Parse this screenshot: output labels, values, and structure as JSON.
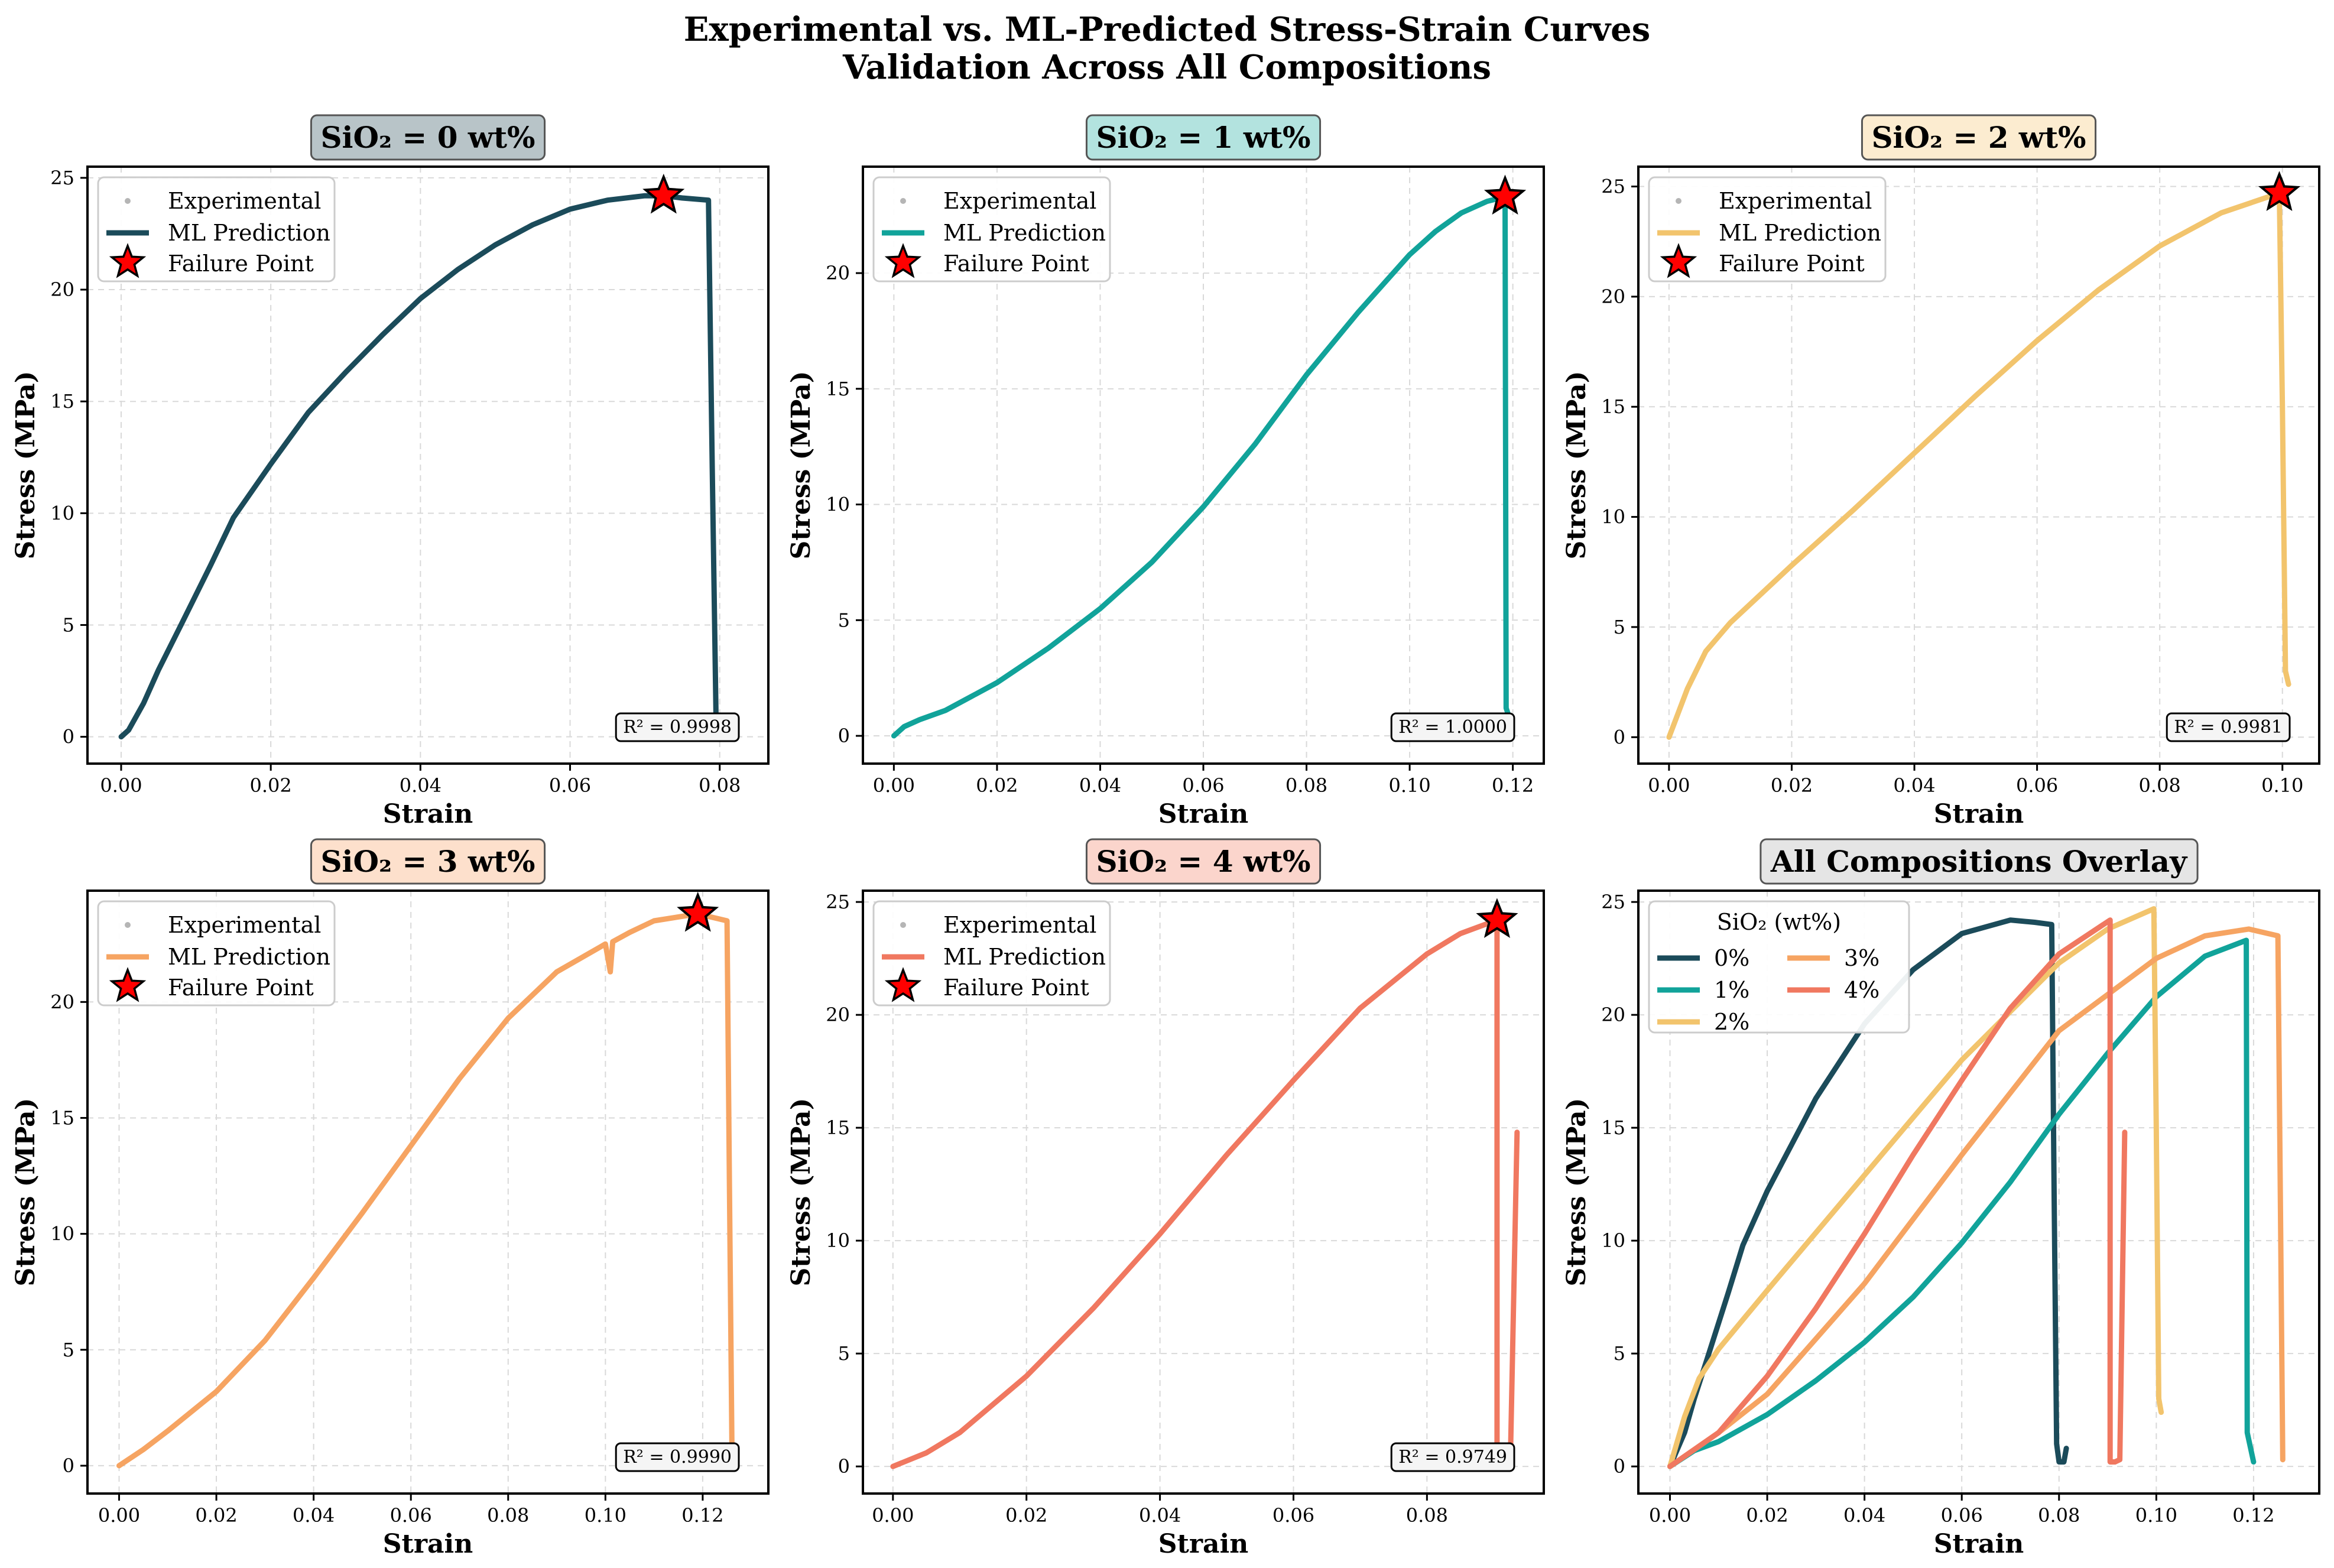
{
  "figure": {
    "title_line1": "Experimental vs. ML-Predicted Stress-Strain Curves",
    "title_line2": "Validation Across All Compositions"
  },
  "legend_labels": {
    "experimental": "Experimental",
    "ml": "ML Prediction",
    "failure": "Failure Point",
    "overlay_title": "SiO₂ (wt%)"
  },
  "colors": {
    "c0": "#1b4b5a",
    "c1": "#11a39a",
    "c2": "#f2c46d",
    "c3": "#f6a462",
    "c4": "#f07860",
    "star": "#ff0000"
  },
  "chart_data": [
    {
      "type": "line",
      "title": "SiO₂ = 0 wt%",
      "xlabel": "Strain",
      "ylabel": "Stress (MPa)",
      "xlim": [
        -0.0045,
        0.0865
      ],
      "ylim": [
        -1.2,
        25.5
      ],
      "xticks": [
        0,
        0.02,
        0.04,
        0.06,
        0.08
      ],
      "xtick_labels": [
        "0.00",
        "0.02",
        "0.04",
        "0.06",
        "0.08"
      ],
      "yticks": [
        0,
        5,
        10,
        15,
        20,
        25
      ],
      "ytick_labels": [
        "0",
        "5",
        "10",
        "15",
        "20",
        "25"
      ],
      "series": [
        {
          "name": "ML Prediction",
          "color_key": "c0",
          "x": [
            0,
            0.001,
            0.003,
            0.005,
            0.008,
            0.012,
            0.015,
            0.02,
            0.025,
            0.03,
            0.035,
            0.04,
            0.045,
            0.05,
            0.055,
            0.06,
            0.065,
            0.07,
            0.0725,
            0.075,
            0.0785,
            0.079,
            0.0795,
            0.08
          ],
          "y": [
            0,
            0.3,
            1.5,
            3.0,
            5.0,
            7.7,
            9.8,
            12.2,
            14.5,
            16.3,
            18.0,
            19.6,
            20.9,
            22.0,
            22.9,
            23.6,
            24.0,
            24.2,
            24.2,
            24.1,
            24.0,
            12.0,
            1.0,
            0.2
          ]
        }
      ],
      "failure_point": {
        "x": 0.0725,
        "y": 24.2
      },
      "r2_label": "R² = 0.9998"
    },
    {
      "type": "line",
      "title": "SiO₂ = 1 wt%",
      "xlabel": "Strain",
      "ylabel": "Stress (MPa)",
      "xlim": [
        -0.006,
        0.126
      ],
      "ylim": [
        -1.2,
        24.6
      ],
      "xticks": [
        0,
        0.02,
        0.04,
        0.06,
        0.08,
        0.1,
        0.12
      ],
      "xtick_labels": [
        "0.00",
        "0.02",
        "0.04",
        "0.06",
        "0.08",
        "0.10",
        "0.12"
      ],
      "yticks": [
        0,
        5,
        10,
        15,
        20
      ],
      "ytick_labels": [
        "0",
        "5",
        "10",
        "15",
        "20"
      ],
      "series": [
        {
          "name": "ML Prediction",
          "color_key": "c1",
          "x": [
            0,
            0.002,
            0.005,
            0.01,
            0.015,
            0.02,
            0.03,
            0.04,
            0.05,
            0.06,
            0.07,
            0.08,
            0.09,
            0.1,
            0.105,
            0.11,
            0.115,
            0.1185,
            0.1187,
            0.119
          ],
          "y": [
            0,
            0.4,
            0.7,
            1.1,
            1.7,
            2.3,
            3.8,
            5.5,
            7.5,
            9.9,
            12.6,
            15.6,
            18.3,
            20.8,
            21.8,
            22.6,
            23.1,
            23.3,
            1.2,
            1.0
          ]
        }
      ],
      "failure_point": {
        "x": 0.1185,
        "y": 23.3
      },
      "r2_label": "R² = 1.0000"
    },
    {
      "type": "line",
      "title": "SiO₂ = 2 wt%",
      "xlabel": "Strain",
      "ylabel": "Stress (MPa)",
      "xlim": [
        -0.005,
        0.106
      ],
      "ylim": [
        -1.2,
        25.9
      ],
      "xticks": [
        0,
        0.02,
        0.04,
        0.06,
        0.08,
        0.1
      ],
      "xtick_labels": [
        "0.00",
        "0.02",
        "0.04",
        "0.06",
        "0.08",
        "0.10"
      ],
      "yticks": [
        0,
        5,
        10,
        15,
        20,
        25
      ],
      "ytick_labels": [
        "0",
        "5",
        "10",
        "15",
        "20",
        "25"
      ],
      "series": [
        {
          "name": "ML Prediction",
          "color_key": "c2",
          "x": [
            0,
            0.003,
            0.006,
            0.01,
            0.02,
            0.03,
            0.04,
            0.05,
            0.06,
            0.07,
            0.08,
            0.09,
            0.0995,
            0.1,
            0.1005,
            0.101
          ],
          "y": [
            0,
            2.2,
            3.9,
            5.2,
            7.8,
            10.3,
            12.9,
            15.5,
            18.0,
            20.3,
            22.3,
            23.8,
            24.7,
            15.0,
            3.0,
            2.4
          ]
        }
      ],
      "failure_point": {
        "x": 0.0995,
        "y": 24.7
      },
      "r2_label": "R² = 0.9981"
    },
    {
      "type": "line",
      "title": "SiO₂ = 3 wt%",
      "xlabel": "Strain",
      "ylabel": "Stress (MPa)",
      "xlim": [
        -0.0065,
        0.1335
      ],
      "ylim": [
        -1.2,
        24.8
      ],
      "xticks": [
        0,
        0.02,
        0.04,
        0.06,
        0.08,
        0.1,
        0.12
      ],
      "xtick_labels": [
        "0.00",
        "0.02",
        "0.04",
        "0.06",
        "0.08",
        "0.10",
        "0.12"
      ],
      "yticks": [
        0,
        5,
        10,
        15,
        20
      ],
      "ytick_labels": [
        "0",
        "5",
        "10",
        "15",
        "20"
      ],
      "series": [
        {
          "name": "ML Prediction",
          "color_key": "c3",
          "x": [
            0,
            0.005,
            0.01,
            0.02,
            0.03,
            0.04,
            0.05,
            0.06,
            0.07,
            0.08,
            0.09,
            0.1,
            0.101,
            0.1015,
            0.105,
            0.11,
            0.119,
            0.125,
            0.1255,
            0.126
          ],
          "y": [
            0,
            0.7,
            1.5,
            3.2,
            5.4,
            8.1,
            10.9,
            13.8,
            16.7,
            19.3,
            21.3,
            22.5,
            21.3,
            22.6,
            23.0,
            23.5,
            23.8,
            23.5,
            12.0,
            1.0
          ]
        }
      ],
      "failure_point": {
        "x": 0.119,
        "y": 23.8
      },
      "r2_label": "R² = 0.9990"
    },
    {
      "type": "line",
      "title": "SiO₂ = 4 wt%",
      "xlabel": "Strain",
      "ylabel": "Stress (MPa)",
      "xlim": [
        -0.0045,
        0.0975
      ],
      "ylim": [
        -1.2,
        25.5
      ],
      "xticks": [
        0,
        0.02,
        0.04,
        0.06,
        0.08
      ],
      "xtick_labels": [
        "0.00",
        "0.02",
        "0.04",
        "0.06",
        "0.08"
      ],
      "yticks": [
        0,
        5,
        10,
        15,
        20,
        25
      ],
      "ytick_labels": [
        "0",
        "5",
        "10",
        "15",
        "20",
        "25"
      ],
      "series": [
        {
          "name": "ML Prediction",
          "color_key": "c4",
          "x": [
            0,
            0.005,
            0.01,
            0.02,
            0.03,
            0.04,
            0.05,
            0.06,
            0.07,
            0.08,
            0.085,
            0.0905,
            0.0905,
            0.0915,
            0.0925,
            0.0935
          ],
          "y": [
            0,
            0.6,
            1.5,
            4.0,
            7.0,
            10.3,
            13.8,
            17.1,
            20.3,
            22.7,
            23.6,
            24.2,
            0.2,
            0.2,
            0.3,
            14.8
          ]
        }
      ],
      "failure_point": {
        "x": 0.0905,
        "y": 24.2
      },
      "r2_label": "R² = 0.9749"
    },
    {
      "type": "line",
      "title": "All Compositions Overlay",
      "xlabel": "Strain",
      "ylabel": "Stress (MPa)",
      "xlim": [
        -0.0065,
        0.1335
      ],
      "ylim": [
        -1.2,
        25.5
      ],
      "xticks": [
        0,
        0.02,
        0.04,
        0.06,
        0.08,
        0.1,
        0.12
      ],
      "xtick_labels": [
        "0.00",
        "0.02",
        "0.04",
        "0.06",
        "0.08",
        "0.10",
        "0.12"
      ],
      "yticks": [
        0,
        5,
        10,
        15,
        20,
        25
      ],
      "ytick_labels": [
        "0",
        "5",
        "10",
        "15",
        "20",
        "25"
      ],
      "series": [
        {
          "name": "0%",
          "color_key": "c0",
          "x": [
            0,
            0.003,
            0.005,
            0.008,
            0.012,
            0.015,
            0.02,
            0.03,
            0.04,
            0.05,
            0.06,
            0.07,
            0.075,
            0.0785,
            0.079,
            0.0795,
            0.08,
            0.081,
            0.0815
          ],
          "y": [
            0,
            1.5,
            3.0,
            5.0,
            7.7,
            9.8,
            12.2,
            16.3,
            19.6,
            22.0,
            23.6,
            24.2,
            24.1,
            24.0,
            12.0,
            1.0,
            0.2,
            0.2,
            0.8
          ]
        },
        {
          "name": "1%",
          "color_key": "c1",
          "x": [
            0,
            0.005,
            0.01,
            0.02,
            0.03,
            0.04,
            0.05,
            0.06,
            0.07,
            0.08,
            0.09,
            0.1,
            0.11,
            0.1185,
            0.1187,
            0.12
          ],
          "y": [
            0,
            0.7,
            1.1,
            2.3,
            3.8,
            5.5,
            7.5,
            9.9,
            12.6,
            15.6,
            18.3,
            20.8,
            22.6,
            23.3,
            1.5,
            0.2
          ]
        },
        {
          "name": "2%",
          "color_key": "c2",
          "x": [
            0,
            0.003,
            0.006,
            0.01,
            0.02,
            0.04,
            0.06,
            0.08,
            0.09,
            0.0995,
            0.1,
            0.1005,
            0.101
          ],
          "y": [
            0,
            2.2,
            3.9,
            5.2,
            7.8,
            12.9,
            18.0,
            22.3,
            23.8,
            24.7,
            15.0,
            3.0,
            2.4
          ]
        },
        {
          "name": "3%",
          "color_key": "c3",
          "x": [
            0,
            0.01,
            0.02,
            0.04,
            0.06,
            0.08,
            0.1,
            0.11,
            0.119,
            0.125,
            0.1255,
            0.126
          ],
          "y": [
            0,
            1.5,
            3.2,
            8.1,
            13.8,
            19.3,
            22.5,
            23.5,
            23.8,
            23.5,
            12.0,
            0.3
          ]
        },
        {
          "name": "4%",
          "color_key": "c4",
          "x": [
            0,
            0.01,
            0.02,
            0.03,
            0.04,
            0.05,
            0.06,
            0.07,
            0.08,
            0.0905,
            0.0905,
            0.0915,
            0.0925,
            0.0935
          ],
          "y": [
            0,
            1.5,
            4.0,
            7.0,
            10.3,
            13.8,
            17.1,
            20.3,
            22.7,
            24.2,
            0.2,
            0.2,
            0.3,
            14.8
          ]
        }
      ],
      "legend_title": "SiO₂ (wt%)",
      "legend_entries": [
        "0%",
        "1%",
        "2%",
        "3%",
        "4%"
      ]
    }
  ]
}
